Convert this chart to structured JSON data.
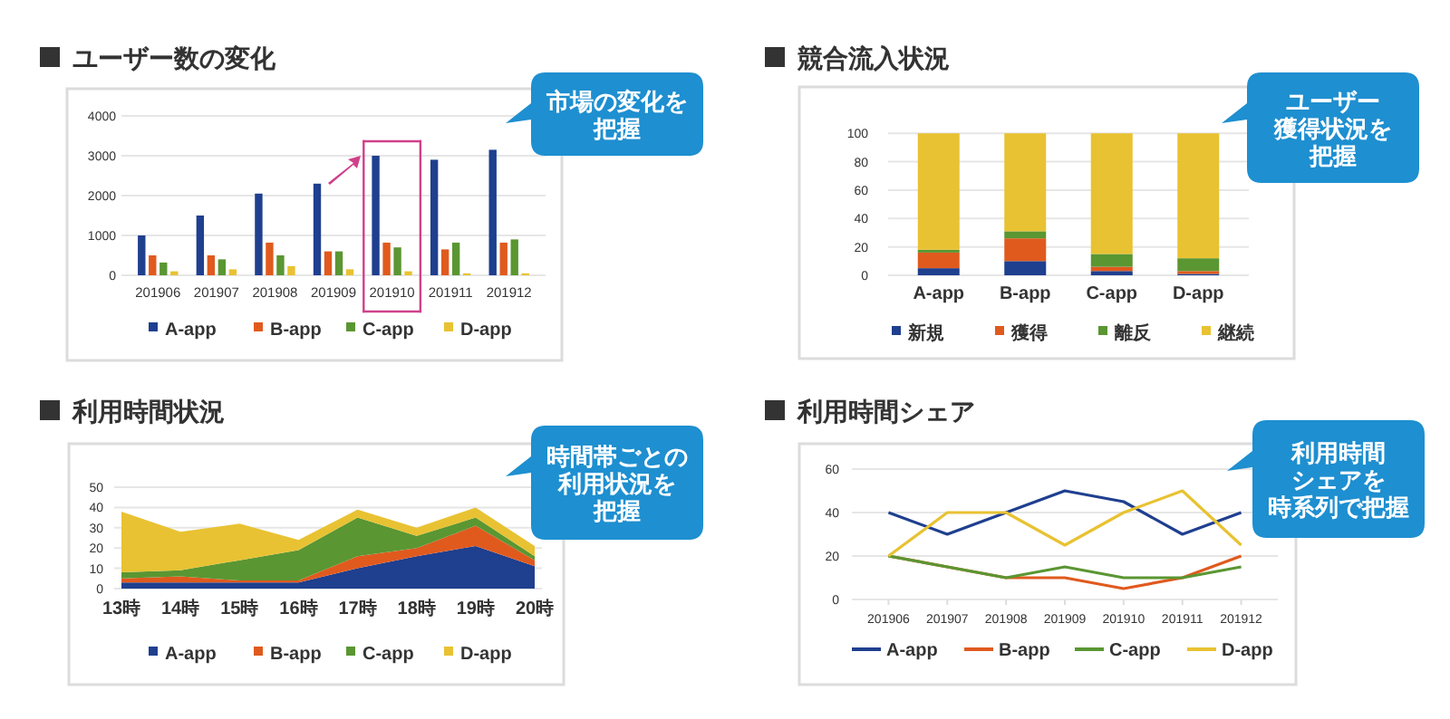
{
  "chart_data": [
    {
      "type": "bar",
      "title": "ユーザー数の変化",
      "annotations": [
        "市場の変化を把握"
      ],
      "categories": [
        "201906",
        "201907",
        "201908",
        "201909",
        "201910",
        "201911",
        "201912"
      ],
      "series": [
        {
          "name": "A-app",
          "color": "#1f3f8f",
          "values": [
            1000,
            1500,
            2050,
            2300,
            3000,
            2900,
            3150
          ]
        },
        {
          "name": "B-app",
          "color": "#e05a1e",
          "values": [
            500,
            500,
            820,
            600,
            820,
            650,
            820
          ]
        },
        {
          "name": "C-app",
          "color": "#5a9632",
          "values": [
            320,
            400,
            500,
            600,
            700,
            820,
            900
          ]
        },
        {
          "name": "D-app",
          "color": "#e8c232",
          "values": [
            100,
            150,
            230,
            150,
            100,
            50,
            50
          ]
        }
      ],
      "ylim": [
        0,
        4000
      ],
      "yticks": [
        0,
        1000,
        2000,
        3000,
        4000
      ],
      "grid": "y",
      "legend": "bottom"
    },
    {
      "type": "bar",
      "stacked": true,
      "title": "競合流入状況",
      "annotations": [
        "ユーザー獲得状況を把握"
      ],
      "categories": [
        "A-app",
        "B-app",
        "C-app",
        "D-app"
      ],
      "series": [
        {
          "name": "新規",
          "color": "#1f3f8f",
          "values": [
            5,
            10,
            3,
            1
          ]
        },
        {
          "name": "獲得",
          "color": "#e05a1e",
          "values": [
            11,
            16,
            3,
            2
          ]
        },
        {
          "name": "離反",
          "color": "#5a9632",
          "values": [
            2,
            5,
            9,
            9
          ]
        },
        {
          "name": "継続",
          "color": "#e8c232",
          "values": [
            82,
            69,
            85,
            88
          ]
        }
      ],
      "ylim": [
        0,
        100
      ],
      "yticks": [
        0,
        20,
        40,
        60,
        80,
        100
      ],
      "grid": "y",
      "legend": "bottom"
    },
    {
      "type": "area",
      "stacked": true,
      "title": "利用時間状況",
      "annotations": [
        "時間帯ごとの利用状況を把握"
      ],
      "categories": [
        "13時",
        "14時",
        "15時",
        "16時",
        "17時",
        "18時",
        "19時",
        "20時"
      ],
      "series": [
        {
          "name": "A-app",
          "color": "#1f3f8f",
          "values": [
            3,
            3,
            3,
            3,
            10,
            16,
            21,
            11
          ]
        },
        {
          "name": "B-app",
          "color": "#e05a1e",
          "values": [
            2,
            3,
            1,
            1,
            6,
            4,
            10,
            3
          ]
        },
        {
          "name": "C-app",
          "color": "#5a9632",
          "values": [
            3,
            3,
            10,
            15,
            19,
            6,
            4,
            2
          ]
        },
        {
          "name": "D-app",
          "color": "#e8c232",
          "values": [
            30,
            19,
            18,
            5,
            4,
            4,
            5,
            5
          ]
        }
      ],
      "ylim": [
        0,
        50
      ],
      "yticks": [
        0,
        10,
        20,
        30,
        40,
        50
      ],
      "grid": "y",
      "legend": "bottom"
    },
    {
      "type": "line",
      "title": "利用時間シェア",
      "annotations": [
        "利用時間シェアを時系列で把握"
      ],
      "categories": [
        "201906",
        "201907",
        "201908",
        "201909",
        "201910",
        "201911",
        "201912"
      ],
      "series": [
        {
          "name": "A-app",
          "color": "#1f3f8f",
          "values": [
            40,
            30,
            40,
            50,
            45,
            30,
            40
          ]
        },
        {
          "name": "B-app",
          "color": "#e05a1e",
          "values": [
            20,
            15,
            10,
            10,
            5,
            10,
            20
          ]
        },
        {
          "name": "C-app",
          "color": "#5a9632",
          "values": [
            20,
            15,
            10,
            15,
            10,
            10,
            15
          ]
        },
        {
          "name": "D-app",
          "color": "#e8c232",
          "values": [
            20,
            40,
            40,
            25,
            40,
            50,
            25
          ]
        }
      ],
      "ylim": [
        0,
        60
      ],
      "yticks": [
        0,
        20,
        40,
        60
      ],
      "grid": "y",
      "legend": "bottom"
    }
  ]
}
